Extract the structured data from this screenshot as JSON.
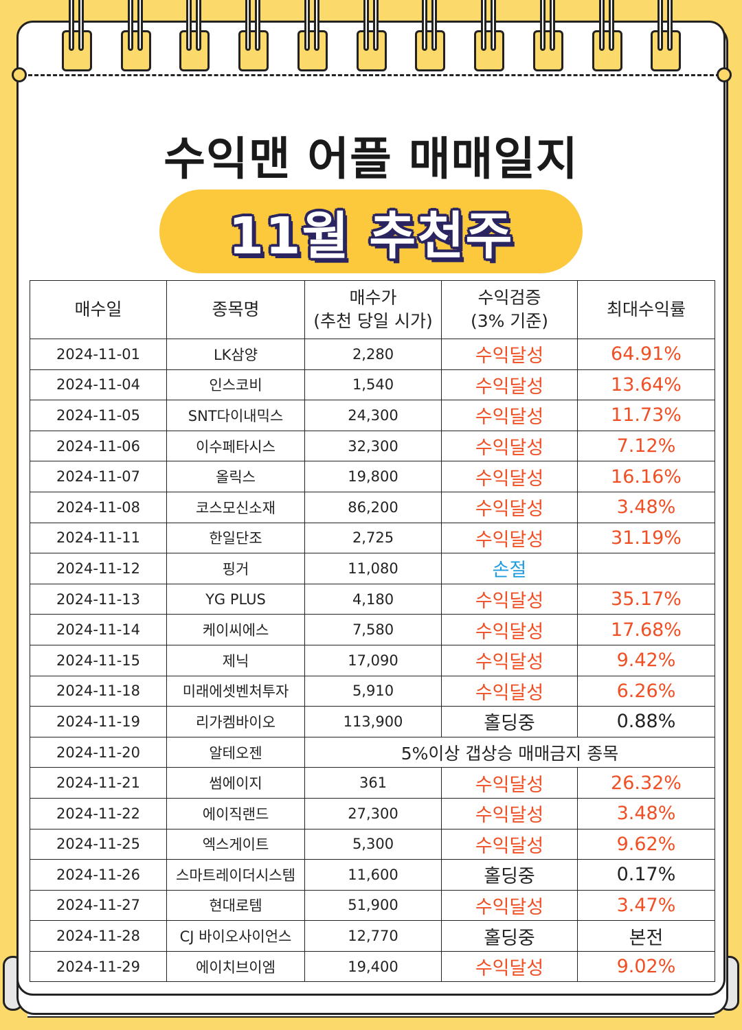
{
  "header": {
    "title": "수익맨 어플 매매일지",
    "subtitle": "11월 추천주"
  },
  "table": {
    "columns": [
      {
        "line1": "매수일",
        "line2": ""
      },
      {
        "line1": "종목명",
        "line2": ""
      },
      {
        "line1": "매수가",
        "line2": "(추천 당일 시가)"
      },
      {
        "line1": "수익검증",
        "line2": "(3% 기준)"
      },
      {
        "line1": "최대수익률",
        "line2": ""
      }
    ],
    "rows": [
      {
        "date": "2024-11-01",
        "name": "LK삼양",
        "price": "2,280",
        "status": "수익달성",
        "status_type": "ok",
        "rate": "64.91%"
      },
      {
        "date": "2024-11-04",
        "name": "인스코비",
        "price": "1,540",
        "status": "수익달성",
        "status_type": "ok",
        "rate": "13.64%"
      },
      {
        "date": "2024-11-05",
        "name": "SNT다이내믹스",
        "price": "24,300",
        "status": "수익달성",
        "status_type": "ok",
        "rate": "11.73%"
      },
      {
        "date": "2024-11-06",
        "name": "이수페타시스",
        "price": "32,300",
        "status": "수익달성",
        "status_type": "ok",
        "rate": "7.12%"
      },
      {
        "date": "2024-11-07",
        "name": "올릭스",
        "price": "19,800",
        "status": "수익달성",
        "status_type": "ok",
        "rate": "16.16%"
      },
      {
        "date": "2024-11-08",
        "name": "코스모신소재",
        "price": "86,200",
        "status": "수익달성",
        "status_type": "ok",
        "rate": "3.48%"
      },
      {
        "date": "2024-11-11",
        "name": "한일단조",
        "price": "2,725",
        "status": "수익달성",
        "status_type": "ok",
        "rate": "31.19%"
      },
      {
        "date": "2024-11-12",
        "name": "핑거",
        "price": "11,080",
        "status": "손절",
        "status_type": "loss",
        "rate": ""
      },
      {
        "date": "2024-11-13",
        "name": "YG PLUS",
        "price": "4,180",
        "status": "수익달성",
        "status_type": "ok",
        "rate": "35.17%"
      },
      {
        "date": "2024-11-14",
        "name": "케이씨에스",
        "price": "7,580",
        "status": "수익달성",
        "status_type": "ok",
        "rate": "17.68%"
      },
      {
        "date": "2024-11-15",
        "name": "제닉",
        "price": "17,090",
        "status": "수익달성",
        "status_type": "ok",
        "rate": "9.42%"
      },
      {
        "date": "2024-11-18",
        "name": "미래에셋벤처투자",
        "price": "5,910",
        "status": "수익달성",
        "status_type": "ok",
        "rate": "6.26%"
      },
      {
        "date": "2024-11-19",
        "name": "리가켐바이오",
        "price": "113,900",
        "status": "홀딩중",
        "status_type": "hold",
        "rate": "0.88%"
      },
      {
        "date": "2024-11-20",
        "name": "알테오젠",
        "merged": "5%이상 갭상승 매매금지 종목"
      },
      {
        "date": "2024-11-21",
        "name": "썸에이지",
        "price": "361",
        "status": "수익달성",
        "status_type": "ok",
        "rate": "26.32%"
      },
      {
        "date": "2024-11-22",
        "name": "에이직랜드",
        "price": "27,300",
        "status": "수익달성",
        "status_type": "ok",
        "rate": "3.48%"
      },
      {
        "date": "2024-11-25",
        "name": "엑스게이트",
        "price": "5,300",
        "status": "수익달성",
        "status_type": "ok",
        "rate": "9.62%"
      },
      {
        "date": "2024-11-26",
        "name": "스마트레이더시스템",
        "price": "11,600",
        "status": "홀딩중",
        "status_type": "hold",
        "rate": "0.17%"
      },
      {
        "date": "2024-11-27",
        "name": "현대로템",
        "price": "51,900",
        "status": "수익달성",
        "status_type": "ok",
        "rate": "3.47%"
      },
      {
        "date": "2024-11-28",
        "name": "CJ 바이오사이언스",
        "price": "12,770",
        "status": "홀딩중",
        "status_type": "hold",
        "rate": "본전"
      },
      {
        "date": "2024-11-29",
        "name": "에이치브이엠",
        "price": "19,400",
        "status": "수익달성",
        "status_type": "ok",
        "rate": "9.02%"
      }
    ]
  },
  "colors": {
    "background": "#fcd96b",
    "pill": "#fcc93d",
    "profit": "#f04e23",
    "loss": "#1e9be0",
    "outline": "#2a2560"
  }
}
